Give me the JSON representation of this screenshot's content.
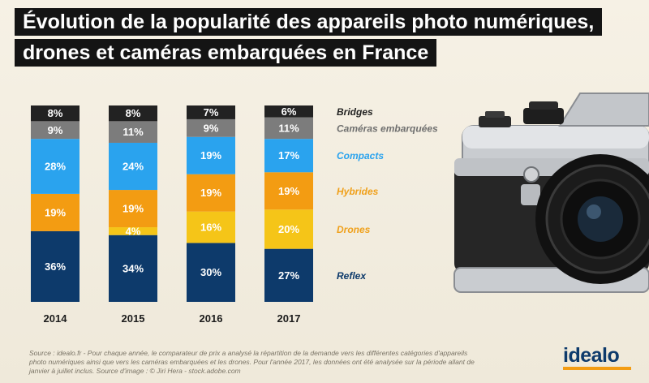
{
  "title": {
    "line1": "Évolution de la popularité des appareils photo numériques,",
    "line2": "drones et caméras embarquées en France"
  },
  "chart_data": {
    "type": "bar",
    "stacked": true,
    "unit": "%",
    "categories": [
      "2014",
      "2015",
      "2016",
      "2017"
    ],
    "series": [
      {
        "name": "Reflex",
        "values": [
          36,
          34,
          30,
          27
        ],
        "color": "#0d3a6b",
        "label_color": "#ffffff"
      },
      {
        "name": "Drones",
        "values": [
          0,
          4,
          16,
          20
        ],
        "color": "#f5c518",
        "label_color": "#ffffff"
      },
      {
        "name": "Hybrides",
        "values": [
          19,
          19,
          19,
          19
        ],
        "color": "#f39c12",
        "label_color": "#ffffff"
      },
      {
        "name": "Compacts",
        "values": [
          28,
          24,
          19,
          17
        ],
        "color": "#2aa3ee",
        "label_color": "#ffffff"
      },
      {
        "name": "Caméras embarquées",
        "values": [
          9,
          11,
          9,
          11
        ],
        "color": "#7c7c7c",
        "label_color": "#ffffff"
      },
      {
        "name": "Bridges",
        "values": [
          8,
          8,
          7,
          6
        ],
        "color": "#222222",
        "label_color": "#ffffff"
      }
    ],
    "legend_colors": {
      "Bridges": "#222222",
      "Caméras embarquées": "#6f6f6f",
      "Compacts": "#2aa3ee",
      "Hybrides": "#f0a01a",
      "Drones": "#f0a01a",
      "Reflex": "#0d3a6b"
    },
    "legend_placement": "right",
    "grid": false
  },
  "source_text": "Source : idealo.fr - Pour chaque année, le comparateur de prix a analysé la répartition de la demande vers les différentes catégories d'appareils photo numériques ainsi que vers les caméras embarquées et les drones. Pour l'année 2017, les données ont été analysée sur la période allant de janvier à juillet inclus. Source d'image : © Jiri Hera - stock.adobe.com",
  "logo": "idealo",
  "colors": {
    "background": "#f4efe2",
    "title_bg": "#141414",
    "brand_blue": "#0d3a6b",
    "brand_orange": "#f39c12"
  }
}
